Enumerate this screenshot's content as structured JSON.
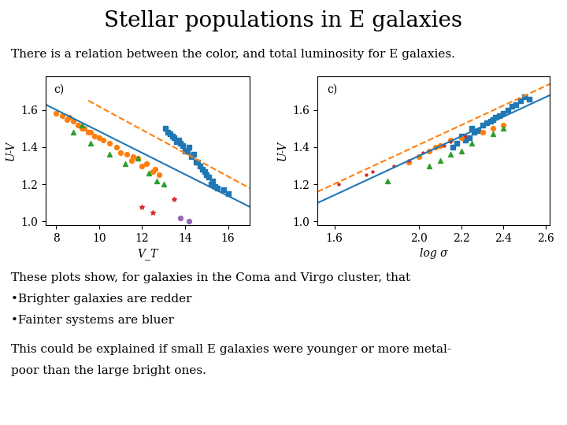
{
  "title": "Stellar populations in E galaxies",
  "subtitle": "There is a relation between the color, and total luminosity for E galaxies.",
  "annotations": [
    "These plots show, for galaxies in the Coma and Virgo cluster, that",
    "•Brighter galaxies are redder",
    "•Fainter systems are bluer",
    "This could be explained if small E galaxies were younger or more metal-",
    "poor than the large bright ones."
  ],
  "chart_data": [
    {
      "type": "scatter",
      "annotations": [
        "c)"
      ],
      "x_label": "V_T",
      "y_label": "U-V",
      "xlim": [
        7.5,
        17.0
      ],
      "ylim": [
        0.98,
        1.78
      ],
      "xticks": [
        8,
        10,
        12,
        14,
        16
      ],
      "yticks": [
        1.0,
        1.2,
        1.4,
        1.6
      ],
      "series": [
        {
          "type": "scatter",
          "marker": "square",
          "x": [
            13.5,
            14.0,
            13.8,
            14.5,
            15.0,
            14.2,
            13.2,
            14.8,
            15.2,
            13.6,
            14.3,
            13.9,
            15.5,
            14.7,
            13.4,
            14.1,
            15.3,
            13.7,
            14.6,
            15.1,
            14.4,
            13.3,
            15.4,
            14.9,
            13.1,
            16.0,
            15.8
          ],
          "values": [
            1.45,
            1.38,
            1.42,
            1.32,
            1.25,
            1.4,
            1.48,
            1.28,
            1.2,
            1.43,
            1.35,
            1.41,
            1.18,
            1.3,
            1.46,
            1.38,
            1.22,
            1.44,
            1.32,
            1.24,
            1.36,
            1.47,
            1.19,
            1.27,
            1.5,
            1.15,
            1.17
          ]
        },
        {
          "type": "scatter",
          "marker": "circle",
          "x": [
            8.0,
            8.5,
            9.0,
            9.5,
            10.0,
            9.2,
            8.8,
            10.5,
            9.8,
            8.3,
            10.2,
            9.6,
            8.6,
            10.8,
            9.3,
            11.0,
            11.5,
            12.0,
            12.5,
            11.8,
            12.2,
            11.3,
            12.8,
            11.6,
            12.6
          ],
          "values": [
            1.58,
            1.55,
            1.52,
            1.48,
            1.45,
            1.5,
            1.54,
            1.42,
            1.46,
            1.57,
            1.44,
            1.48,
            1.56,
            1.4,
            1.5,
            1.37,
            1.33,
            1.3,
            1.27,
            1.34,
            1.31,
            1.36,
            1.25,
            1.35,
            1.28
          ]
        },
        {
          "type": "scatter",
          "marker": "triangle",
          "x": [
            8.8,
            9.6,
            10.5,
            11.2,
            12.3,
            13.0,
            9.2,
            11.8,
            12.7
          ],
          "values": [
            1.48,
            1.42,
            1.36,
            1.31,
            1.26,
            1.2,
            1.52,
            1.34,
            1.22
          ]
        },
        {
          "type": "scatter",
          "marker": "star",
          "x": [
            12.0,
            13.5,
            12.5
          ],
          "values": [
            1.08,
            1.12,
            1.05
          ]
        },
        {
          "type": "scatter",
          "marker": "circle",
          "x": [
            13.8,
            14.2
          ],
          "values": [
            1.02,
            1.0
          ]
        },
        {
          "type": "line",
          "line_style": "solid",
          "x": [
            7.5,
            17.0
          ],
          "values": [
            1.63,
            1.08
          ]
        },
        {
          "type": "line",
          "line_style": "dashed",
          "x": [
            9.5,
            17.0
          ],
          "values": [
            1.65,
            1.18
          ]
        }
      ]
    },
    {
      "type": "scatter",
      "annotations": [
        "c)"
      ],
      "x_label": "log σ",
      "y_label": "U-V",
      "xlim": [
        1.52,
        2.62
      ],
      "ylim": [
        0.98,
        1.78
      ],
      "xticks": [
        1.6,
        2.0,
        2.2,
        2.4,
        2.6
      ],
      "yticks": [
        1.0,
        1.2,
        1.4,
        1.6
      ],
      "series": [
        {
          "type": "scatter",
          "marker": "square",
          "x": [
            2.25,
            2.3,
            2.35,
            2.2,
            2.4,
            2.28,
            2.32,
            2.38,
            2.22,
            2.42,
            2.26,
            2.34,
            2.36,
            2.24,
            2.44,
            2.18,
            2.46,
            2.16,
            2.48,
            2.5,
            2.52
          ],
          "values": [
            1.5,
            1.52,
            1.55,
            1.46,
            1.58,
            1.49,
            1.53,
            1.57,
            1.44,
            1.6,
            1.48,
            1.54,
            1.56,
            1.45,
            1.62,
            1.42,
            1.63,
            1.4,
            1.65,
            1.67,
            1.66
          ]
        },
        {
          "type": "scatter",
          "marker": "circle",
          "x": [
            1.95,
            2.0,
            2.05,
            2.1,
            2.15,
            2.2,
            2.08,
            2.3,
            2.35,
            2.4
          ],
          "values": [
            1.32,
            1.35,
            1.38,
            1.41,
            1.44,
            1.45,
            1.4,
            1.48,
            1.5,
            1.52
          ]
        },
        {
          "type": "scatter",
          "marker": "triangle",
          "x": [
            1.85,
            2.05,
            2.15,
            2.25,
            2.35,
            2.4,
            2.1,
            2.2
          ],
          "values": [
            1.22,
            1.3,
            1.36,
            1.42,
            1.47,
            1.5,
            1.33,
            1.38
          ]
        },
        {
          "type": "scatter",
          "marker": "point",
          "x": [
            1.62,
            1.75,
            1.88,
            1.95,
            2.02,
            2.12,
            2.22,
            2.15,
            1.78
          ],
          "values": [
            1.2,
            1.25,
            1.3,
            1.33,
            1.37,
            1.41,
            1.46,
            1.43,
            1.27
          ]
        },
        {
          "type": "line",
          "line_style": "solid",
          "x": [
            1.52,
            2.62
          ],
          "values": [
            1.1,
            1.68
          ]
        },
        {
          "type": "line",
          "line_style": "dashed",
          "x": [
            1.52,
            2.62
          ],
          "values": [
            1.16,
            1.74
          ]
        }
      ]
    }
  ]
}
